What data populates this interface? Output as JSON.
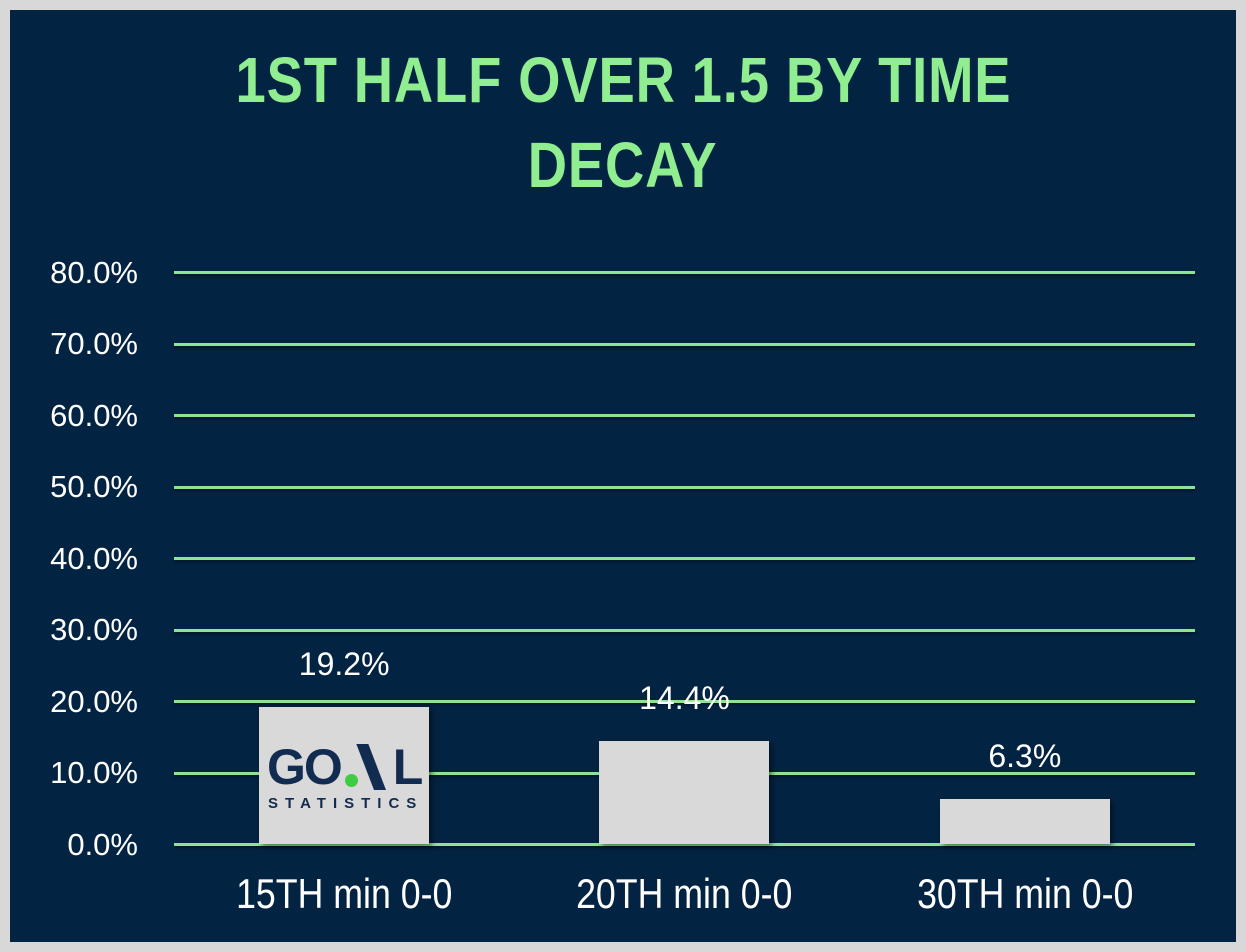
{
  "chart_data": {
    "type": "bar",
    "title": "1ST HALF OVER 1.5 BY TIME DECAY",
    "title_lines": [
      "1ST HALF OVER 1.5 BY TIME",
      "DECAY"
    ],
    "categories": [
      "15TH min 0-0",
      "20TH min 0-0",
      "30TH min 0-0"
    ],
    "values": [
      19.2,
      14.4,
      6.3
    ],
    "value_labels": [
      "19.2%",
      "14.4%",
      "6.3%"
    ],
    "ylabel": "",
    "xlabel": "",
    "ylim": [
      0,
      80
    ],
    "grid": true,
    "legend": false,
    "yticks": [
      {
        "value": 80,
        "label": "80.0%"
      },
      {
        "value": 70,
        "label": "70.0%"
      },
      {
        "value": 60,
        "label": "60.0%"
      },
      {
        "value": 50,
        "label": "50.0%"
      },
      {
        "value": 40,
        "label": "40.0%"
      },
      {
        "value": 30,
        "label": "30.0%"
      },
      {
        "value": 20,
        "label": "20.0%"
      },
      {
        "value": 10,
        "label": "10.0%"
      },
      {
        "value": 0,
        "label": "0.0%"
      }
    ]
  },
  "logo": {
    "word_start": "GO",
    "word_end": "L",
    "mark": "green-dot-and-slash",
    "subtitle": "STATISTICS"
  },
  "colors": {
    "background": "#032342",
    "frame-border": "#d8d8d8",
    "bar-fill": "#d9d9d9",
    "grid-line": "#8BE594",
    "title-green": "#90EE90",
    "label-white": "#ffffff",
    "logo-navy": "#122B50",
    "logo-green": "#3ECC45"
  }
}
